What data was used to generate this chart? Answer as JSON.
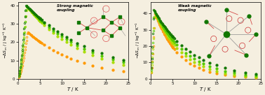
{
  "left_ylabel": "$-\\Delta S_m$ / J kg$^{-1}$ K$^{-1}$",
  "right_ylabel": "$-\\Delta S_m$ / J kg$^{-1}$ K$^{-1}$",
  "xlabel": "$T$ / K",
  "left_ylim": [
    0,
    42
  ],
  "right_ylim": [
    0,
    47
  ],
  "background": "#f5efe0",
  "left_series": [
    {
      "peak": 25.5,
      "T_peak": 2.2,
      "decay": 0.085,
      "color": "#ff9900",
      "label": "orange"
    },
    {
      "peak": 39.5,
      "T_peak": 2.0,
      "decay": 0.075,
      "color": "#aadd00",
      "label": "lime"
    },
    {
      "peak": 40.0,
      "T_peak": 1.9,
      "decay": 0.068,
      "color": "#55cc00",
      "label": "green"
    },
    {
      "peak": 40.2,
      "T_peak": 1.8,
      "decay": 0.062,
      "color": "#117700",
      "label": "darkgreen"
    }
  ],
  "right_series": [
    {
      "peak": 40.0,
      "T_peak": 1.0,
      "decay": 0.18,
      "color": "#ff9900",
      "label": "orange"
    },
    {
      "peak": 41.5,
      "T_peak": 0.9,
      "decay": 0.155,
      "color": "#aadd00",
      "label": "lime"
    },
    {
      "peak": 42.0,
      "T_peak": 0.8,
      "decay": 0.135,
      "color": "#55cc00",
      "label": "green"
    },
    {
      "peak": 42.5,
      "T_peak": 0.7,
      "decay": 0.115,
      "color": "#117700",
      "label": "darkgreen"
    }
  ],
  "left_annotation": "Strong magnetic\ncoupling",
  "right_annotation": "Weak magnetic\ncoupling"
}
